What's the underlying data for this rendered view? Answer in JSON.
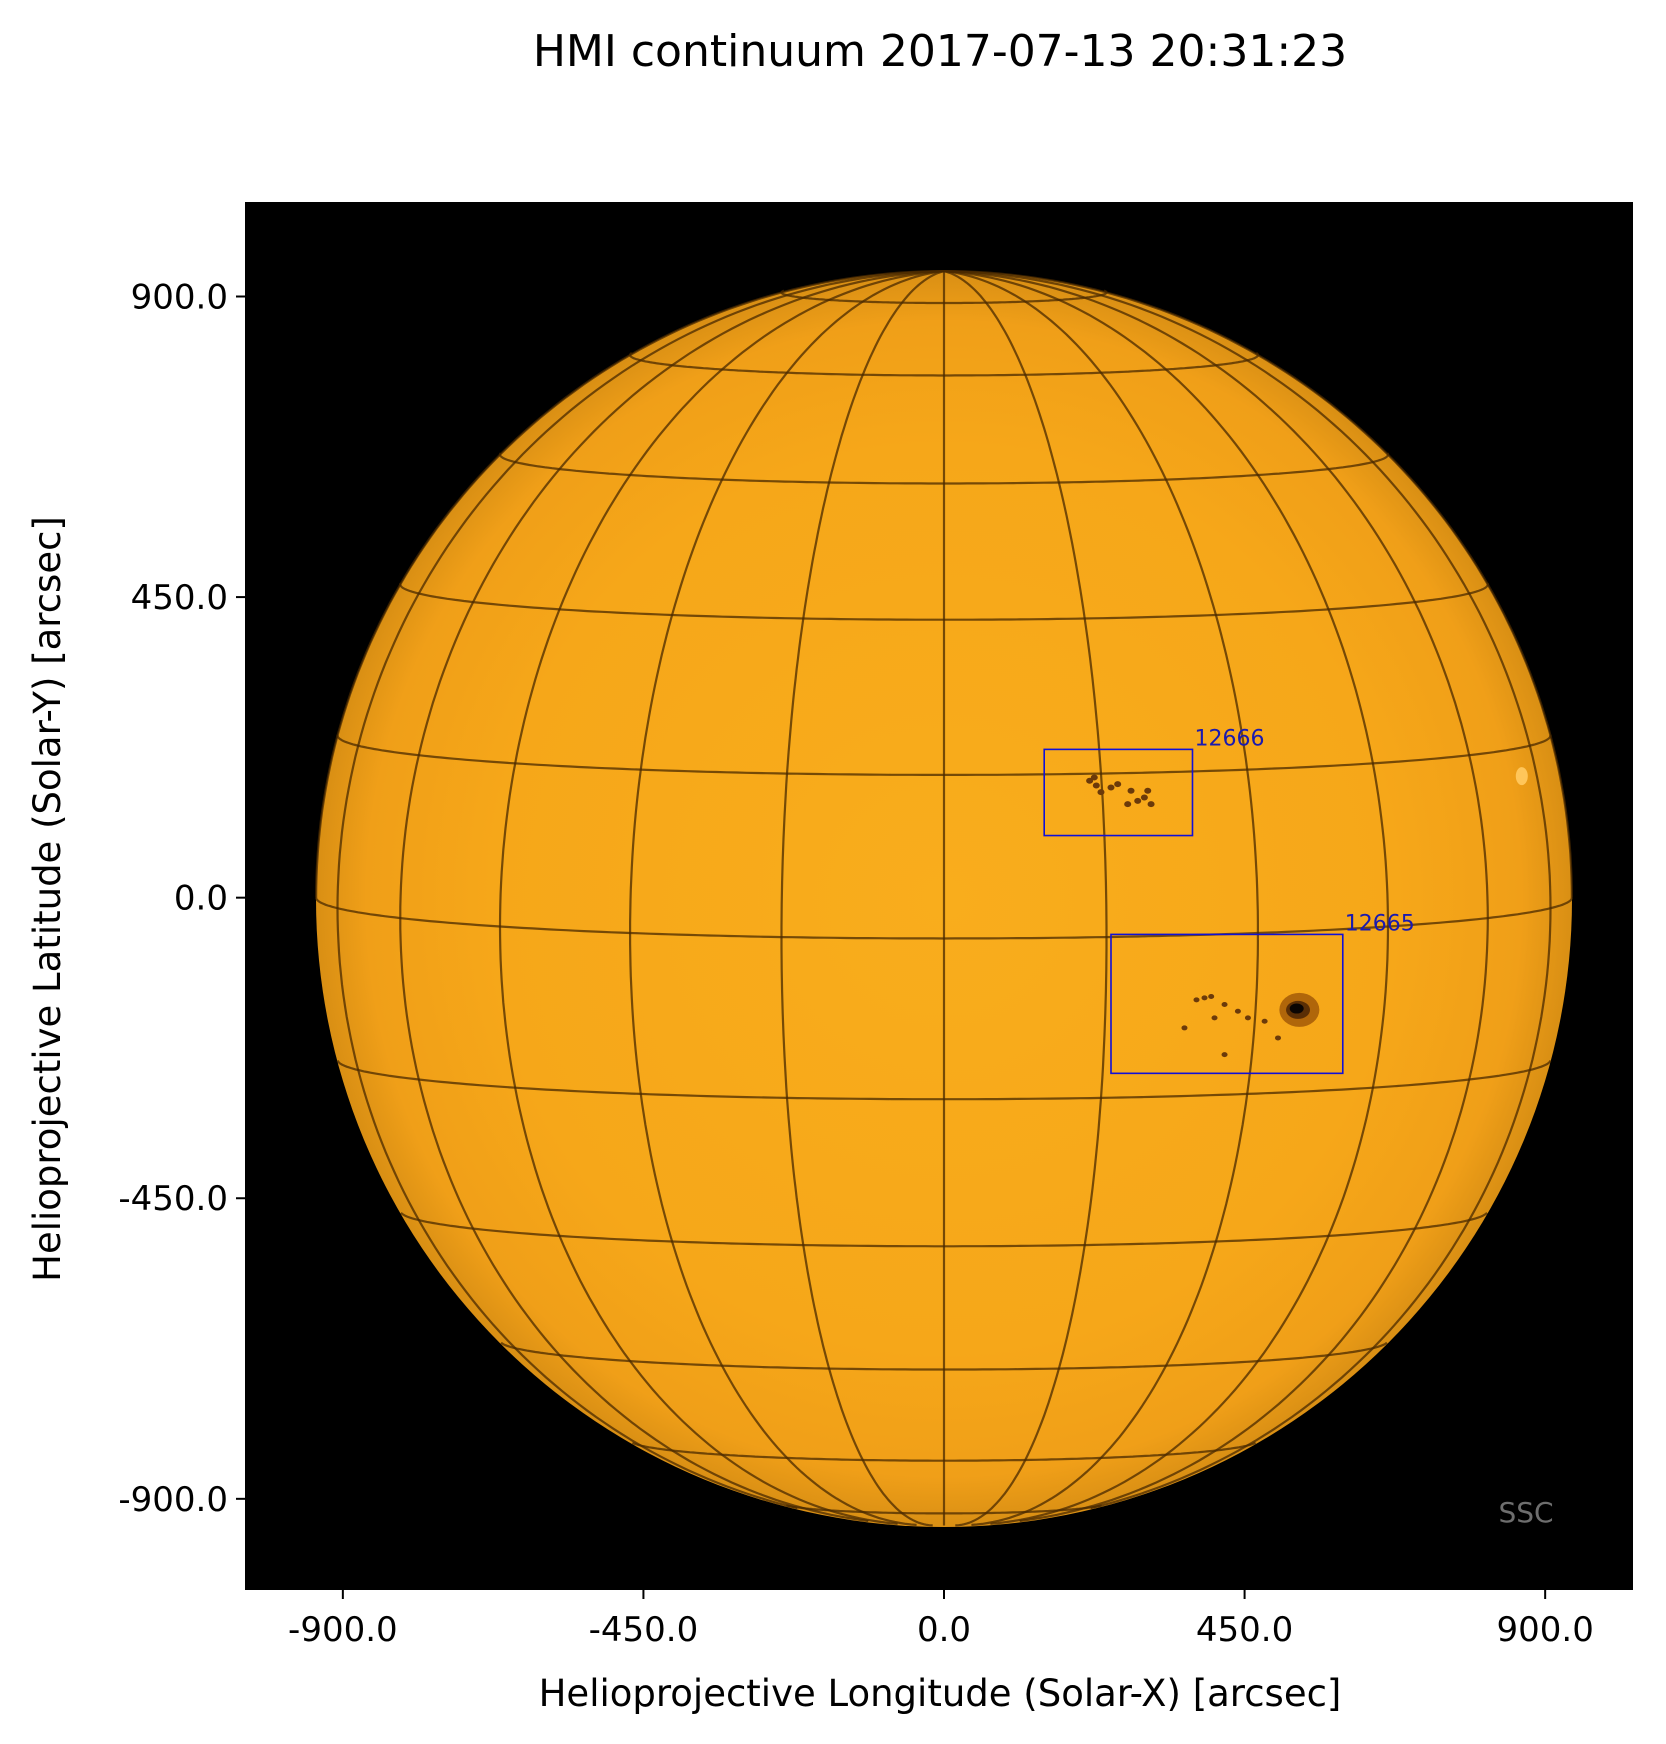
{
  "title": "HMI continuum 2017-07-13 20:31:23",
  "xlabel": "Helioprojective Longitude (Solar-X) [arcsec]",
  "ylabel": "Helioprojective Latitude (Solar-Y) [arcsec]",
  "x_ticks": [
    "-900.0",
    "-450.0",
    "0.0",
    "450.0",
    "900.0"
  ],
  "y_ticks": [
    "900.0",
    "450.0",
    "0.0",
    "-450.0",
    "-900.0"
  ],
  "x_tick_values": [
    -900,
    -450,
    0,
    450,
    900
  ],
  "y_tick_values": [
    900,
    450,
    0,
    -450,
    -900
  ],
  "axis_range_arcsec": {
    "x": [
      -1045,
      1030
    ],
    "y": [
      -1035,
      1040
    ]
  },
  "solar_radius_arcsec": 940,
  "grid": "heliographic, 15 degree spacing",
  "regions": [
    {
      "id": "12666",
      "x_range_arcsec": [
        150,
        372
      ],
      "y_range_arcsec": [
        93,
        222
      ]
    },
    {
      "id": "12665",
      "x_range_arcsec": [
        250,
        597
      ],
      "y_range_arcsec": [
        -263,
        -55
      ]
    }
  ],
  "watermark": "SSC",
  "colors": {
    "background": "#000000",
    "disk": "#f6a91c",
    "grid_lines": "#4a2a00",
    "region_box": "#1010d8",
    "region_label": "#1a1ab0",
    "watermark": "#6e6e6e"
  }
}
